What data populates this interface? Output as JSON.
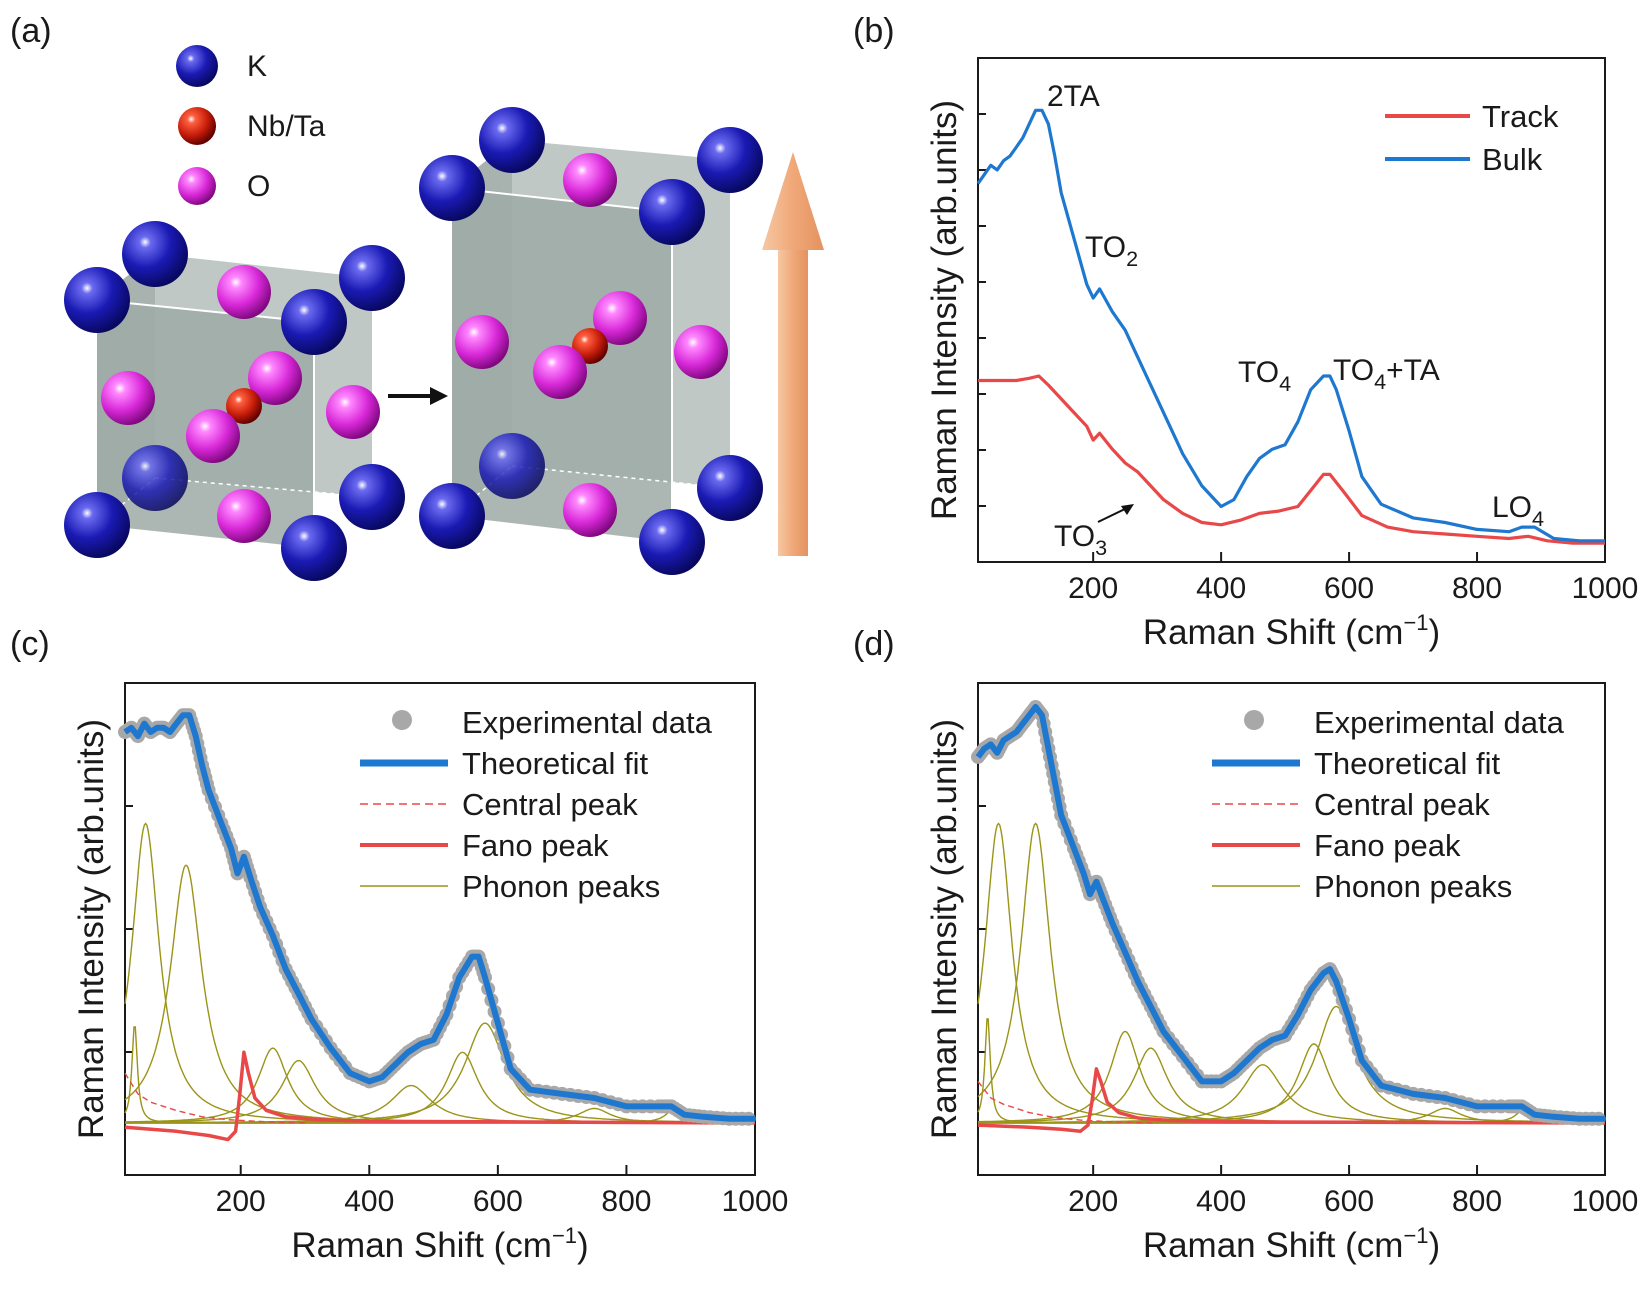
{
  "panel_labels": [
    "(a)",
    "(b)",
    "(c)",
    "(d)"
  ],
  "structure": {
    "legend": [
      {
        "label": "K",
        "color": "#1a1ab4"
      },
      {
        "label": "Nb/Ta",
        "color": "#c81e0a"
      },
      {
        "label": "O",
        "color": "#d828d8"
      }
    ],
    "arrow_color": "#f0a878",
    "cell_color": "#9eaaa6"
  },
  "chart_data": [
    {
      "panel": "(b)",
      "type": "line",
      "xlabel": "Raman Shift (cm−1)",
      "ylabel": "Raman Intensity (arb.units)",
      "xlim": [
        20,
        1000
      ],
      "xticks": [
        200,
        400,
        600,
        800,
        1000
      ],
      "ylim": [
        0,
        1
      ],
      "legend_position": "top-right",
      "series": [
        {
          "name": "Track",
          "color": "#e84848",
          "x": [
            20,
            40,
            60,
            80,
            100,
            115,
            130,
            150,
            170,
            190,
            200,
            210,
            230,
            250,
            270,
            290,
            310,
            340,
            370,
            400,
            430,
            460,
            490,
            520,
            540,
            560,
            570,
            590,
            620,
            660,
            700,
            750,
            800,
            850,
            880,
            910,
            950,
            1000
          ],
          "y": [
            0.37,
            0.37,
            0.37,
            0.37,
            0.375,
            0.38,
            0.36,
            0.33,
            0.3,
            0.27,
            0.24,
            0.255,
            0.22,
            0.19,
            0.17,
            0.14,
            0.11,
            0.08,
            0.06,
            0.055,
            0.065,
            0.08,
            0.085,
            0.095,
            0.13,
            0.165,
            0.165,
            0.13,
            0.075,
            0.05,
            0.04,
            0.035,
            0.03,
            0.025,
            0.03,
            0.02,
            0.015,
            0.015
          ]
        },
        {
          "name": "Bulk",
          "color": "#1e78d0",
          "x": [
            20,
            30,
            40,
            50,
            60,
            70,
            80,
            90,
            100,
            110,
            120,
            130,
            140,
            150,
            170,
            190,
            200,
            210,
            230,
            250,
            270,
            290,
            310,
            340,
            370,
            400,
            420,
            440,
            460,
            480,
            500,
            520,
            540,
            560,
            570,
            580,
            600,
            620,
            650,
            700,
            750,
            800,
            850,
            870,
            890,
            920,
            960,
            1000
          ],
          "y": [
            0.8,
            0.82,
            0.84,
            0.83,
            0.85,
            0.86,
            0.88,
            0.9,
            0.93,
            0.96,
            0.96,
            0.93,
            0.86,
            0.78,
            0.68,
            0.58,
            0.55,
            0.57,
            0.52,
            0.48,
            0.42,
            0.36,
            0.3,
            0.21,
            0.14,
            0.095,
            0.11,
            0.16,
            0.2,
            0.22,
            0.23,
            0.28,
            0.35,
            0.38,
            0.38,
            0.35,
            0.26,
            0.16,
            0.1,
            0.07,
            0.06,
            0.045,
            0.04,
            0.05,
            0.05,
            0.025,
            0.02,
            0.02
          ]
        }
      ],
      "annotations": [
        {
          "text": "2TA",
          "x": 112,
          "y": 0.96
        },
        {
          "text": "TO",
          "sub": "2",
          "x": 198,
          "y": 0.62
        },
        {
          "text": "TO",
          "sub": "4",
          "x": 470,
          "y": 0.38
        },
        {
          "text": "TO",
          "sub": "4",
          "after": "+TA",
          "x": 570,
          "y": 0.38
        },
        {
          "text": "TO",
          "sub": "3",
          "x": 250,
          "y": 0.05
        },
        {
          "text": "LO",
          "sub": "4",
          "x": 870,
          "y": 0.08
        }
      ]
    },
    {
      "panel": "(c)",
      "type": "line",
      "xlabel": "Raman Shift (cm−1)",
      "ylabel": "Raman Intensity (arb.units)",
      "xlim": [
        20,
        1000
      ],
      "xticks": [
        200,
        400,
        600,
        800,
        1000
      ],
      "ylim": [
        0,
        1
      ],
      "legend_position": "top-right",
      "experimental_data": {
        "name": "Experimental data",
        "color": "#a8a8a8",
        "x": [
          20,
          30,
          40,
          50,
          60,
          70,
          80,
          90,
          100,
          110,
          120,
          130,
          140,
          150,
          170,
          185,
          195,
          205,
          215,
          230,
          250,
          270,
          290,
          310,
          340,
          370,
          400,
          420,
          440,
          460,
          480,
          500,
          520,
          540,
          560,
          570,
          580,
          600,
          620,
          650,
          700,
          750,
          800,
          850,
          870,
          890,
          920,
          960,
          1000
        ],
        "y": [
          0.94,
          0.95,
          0.93,
          0.96,
          0.94,
          0.95,
          0.95,
          0.94,
          0.96,
          0.98,
          0.98,
          0.93,
          0.86,
          0.8,
          0.72,
          0.66,
          0.6,
          0.64,
          0.59,
          0.52,
          0.45,
          0.37,
          0.31,
          0.25,
          0.18,
          0.12,
          0.1,
          0.11,
          0.14,
          0.17,
          0.19,
          0.2,
          0.26,
          0.35,
          0.4,
          0.4,
          0.35,
          0.24,
          0.13,
          0.08,
          0.07,
          0.06,
          0.04,
          0.04,
          0.04,
          0.02,
          0.015,
          0.01,
          0.01
        ]
      },
      "theoretical_fit": {
        "name": "Theoretical fit",
        "color": "#1e78d0",
        "same_as": "experimental_data"
      },
      "central_peak": {
        "name": "Central peak",
        "color": "#e84848",
        "style": "dashed",
        "x": [
          20,
          40,
          60,
          80,
          100,
          140,
          180,
          240,
          300
        ],
        "y": [
          0.12,
          0.07,
          0.05,
          0.04,
          0.03,
          0.015,
          0.008,
          0.003,
          0.0
        ]
      },
      "fano_peak": {
        "name": "Fano peak",
        "color": "#e84848",
        "x": [
          20,
          100,
          150,
          180,
          192,
          198,
          205,
          212,
          222,
          240,
          270,
          320,
          400,
          1000
        ],
        "y": [
          -0.01,
          -0.02,
          -0.03,
          -0.04,
          -0.02,
          0.06,
          0.17,
          0.12,
          0.06,
          0.03,
          0.015,
          0.008,
          0.004,
          0.0
        ]
      },
      "phonon_peaks": {
        "name": "Phonon peaks",
        "color": "#9a9418",
        "peaks": [
          {
            "center": 35,
            "amp": 0.24,
            "width": 5
          },
          {
            "center": 52,
            "amp": 0.72,
            "width": 26
          },
          {
            "center": 115,
            "amp": 0.62,
            "width": 30
          },
          {
            "center": 250,
            "amp": 0.18,
            "width": 28
          },
          {
            "center": 290,
            "amp": 0.15,
            "width": 32
          },
          {
            "center": 465,
            "amp": 0.09,
            "width": 38
          },
          {
            "center": 545,
            "amp": 0.17,
            "width": 30
          },
          {
            "center": 580,
            "amp": 0.24,
            "width": 38
          },
          {
            "center": 750,
            "amp": 0.035,
            "width": 30
          },
          {
            "center": 875,
            "amp": 0.035,
            "width": 16
          }
        ]
      }
    },
    {
      "panel": "(d)",
      "type": "line",
      "xlabel": "Raman Shift (cm−1)",
      "ylabel": "Raman Intensity (arb.units)",
      "xlim": [
        20,
        1000
      ],
      "xticks": [
        200,
        400,
        600,
        800,
        1000
      ],
      "ylim": [
        0,
        1
      ],
      "legend_position": "top-right",
      "experimental_data": {
        "name": "Experimental data",
        "color": "#a8a8a8",
        "x": [
          20,
          30,
          40,
          50,
          60,
          70,
          80,
          90,
          100,
          110,
          120,
          130,
          140,
          150,
          170,
          185,
          195,
          205,
          215,
          230,
          250,
          270,
          290,
          310,
          340,
          370,
          400,
          420,
          440,
          460,
          480,
          500,
          520,
          540,
          560,
          570,
          580,
          600,
          620,
          650,
          700,
          750,
          800,
          850,
          870,
          890,
          920,
          960,
          1000
        ],
        "y": [
          0.88,
          0.9,
          0.91,
          0.89,
          0.92,
          0.93,
          0.94,
          0.96,
          0.98,
          1.0,
          0.98,
          0.9,
          0.82,
          0.74,
          0.66,
          0.6,
          0.55,
          0.58,
          0.54,
          0.48,
          0.41,
          0.34,
          0.28,
          0.22,
          0.16,
          0.1,
          0.1,
          0.12,
          0.15,
          0.18,
          0.2,
          0.21,
          0.26,
          0.32,
          0.36,
          0.37,
          0.34,
          0.25,
          0.15,
          0.09,
          0.07,
          0.06,
          0.04,
          0.04,
          0.04,
          0.02,
          0.015,
          0.01,
          0.01
        ]
      },
      "theoretical_fit": {
        "name": "Theoretical fit",
        "color": "#1e78d0",
        "same_as": "experimental_data"
      },
      "central_peak": {
        "name": "Central peak",
        "color": "#e84848",
        "style": "dashed",
        "x": [
          20,
          40,
          60,
          80,
          100,
          140,
          180,
          240,
          300
        ],
        "y": [
          0.1,
          0.06,
          0.045,
          0.035,
          0.025,
          0.013,
          0.007,
          0.002,
          0.0
        ]
      },
      "fano_peak": {
        "name": "Fano peak",
        "color": "#e84848",
        "x": [
          20,
          100,
          150,
          180,
          192,
          198,
          205,
          212,
          222,
          240,
          270,
          320,
          400,
          1000
        ],
        "y": [
          -0.005,
          -0.01,
          -0.015,
          -0.02,
          -0.005,
          0.05,
          0.13,
          0.1,
          0.05,
          0.025,
          0.012,
          0.006,
          0.003,
          0.0
        ]
      },
      "phonon_peaks": {
        "name": "Phonon peaks",
        "color": "#9a9418",
        "peaks": [
          {
            "center": 35,
            "amp": 0.26,
            "width": 5
          },
          {
            "center": 52,
            "amp": 0.72,
            "width": 26
          },
          {
            "center": 110,
            "amp": 0.72,
            "width": 28
          },
          {
            "center": 250,
            "amp": 0.22,
            "width": 28
          },
          {
            "center": 290,
            "amp": 0.18,
            "width": 32
          },
          {
            "center": 465,
            "amp": 0.14,
            "width": 38
          },
          {
            "center": 545,
            "amp": 0.19,
            "width": 30
          },
          {
            "center": 580,
            "amp": 0.28,
            "width": 38
          },
          {
            "center": 750,
            "amp": 0.035,
            "width": 30
          },
          {
            "center": 875,
            "amp": 0.035,
            "width": 16
          }
        ]
      }
    }
  ]
}
